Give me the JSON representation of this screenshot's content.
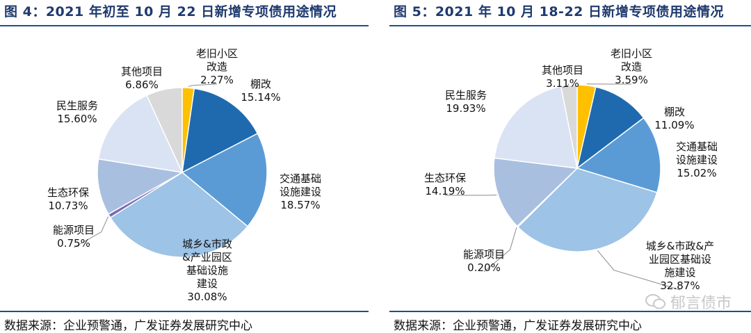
{
  "watermark": "郁言债市",
  "chart_data": [
    {
      "type": "pie",
      "title": "图 4：2021 年初至 10 月 22 日新增专项债用途情况",
      "source": "数据来源：企业预警通，广发证券发展研究中心",
      "slices": [
        {
          "label": "老旧小区改造",
          "lines": [
            "老旧小区",
            "改造"
          ],
          "value": 2.27,
          "display": "2.27%",
          "color": "#FFC000"
        },
        {
          "label": "棚改",
          "lines": [
            "棚改"
          ],
          "value": 15.14,
          "display": "15.14%",
          "color": "#1F6AAE"
        },
        {
          "label": "交通基础设施建设",
          "lines": [
            "交通基础",
            "设施建设"
          ],
          "value": 18.57,
          "display": "18.57%",
          "color": "#5B9BD5"
        },
        {
          "label": "城乡&市政&产业园区基础设施建设",
          "lines": [
            "城乡&市政",
            "&产业园区",
            "基础设施",
            "建设"
          ],
          "value": 30.08,
          "display": "30.08%",
          "color": "#9DC3E6"
        },
        {
          "label": "能源项目",
          "lines": [
            "能源项目"
          ],
          "value": 0.75,
          "display": "0.75%",
          "color": "#7B6BB0"
        },
        {
          "label": "生态环保",
          "lines": [
            "生态环保"
          ],
          "value": 10.73,
          "display": "10.73%",
          "color": "#A9BFE0"
        },
        {
          "label": "民生服务",
          "lines": [
            "民生服务"
          ],
          "value": 15.6,
          "display": "15.60%",
          "color": "#DAE3F3"
        },
        {
          "label": "其他项目",
          "lines": [
            "其他项目"
          ],
          "value": 6.86,
          "display": "6.86%",
          "color": "#D9D9D9"
        }
      ]
    },
    {
      "type": "pie",
      "title": "图 5：2021 年 10 月 18-22 日新增专项债用途情况",
      "source": "数据来源：企业预警通，广发证券发展研究中心",
      "slices": [
        {
          "label": "老旧小区改造",
          "lines": [
            "老旧小区",
            "改造"
          ],
          "value": 3.59,
          "display": "3.59%",
          "color": "#FFC000"
        },
        {
          "label": "棚改",
          "lines": [
            "棚改"
          ],
          "value": 11.09,
          "display": "11.09%",
          "color": "#1F6AAE"
        },
        {
          "label": "交通基础设施建设",
          "lines": [
            "交通基础",
            "设施建设"
          ],
          "value": 15.02,
          "display": "15.02%",
          "color": "#5B9BD5"
        },
        {
          "label": "城乡&市政&产业园区基础设施建设",
          "lines": [
            "城乡&市政&产",
            "业园区基础设",
            "施建设"
          ],
          "value": 32.87,
          "display": "32.87%",
          "color": "#9DC3E6"
        },
        {
          "label": "能源项目",
          "lines": [
            "能源项目"
          ],
          "value": 0.2,
          "display": "0.20%",
          "color": "#7B6BB0"
        },
        {
          "label": "生态环保",
          "lines": [
            "生态环保"
          ],
          "value": 14.19,
          "display": "14.19%",
          "color": "#A9BFE0"
        },
        {
          "label": "民生服务",
          "lines": [
            "民生服务"
          ],
          "value": 19.93,
          "display": "19.93%",
          "color": "#DAE3F3"
        },
        {
          "label": "其他项目",
          "lines": [
            "其他项目"
          ],
          "value": 3.11,
          "display": "3.11%",
          "color": "#D9D9D9"
        }
      ]
    }
  ]
}
